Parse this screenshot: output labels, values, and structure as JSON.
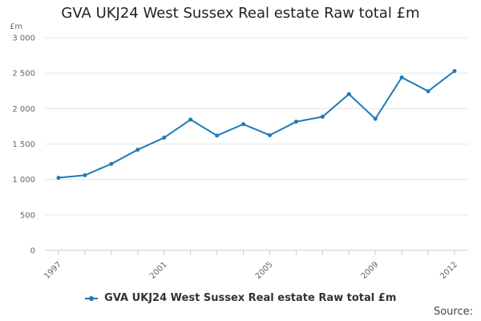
{
  "colors": {
    "series": "#1f7ab5",
    "grid": "#e6e6e6",
    "axis": "#cccccc"
  },
  "footer": {
    "source": "Source:"
  },
  "chart_data": {
    "type": "line",
    "title": "GVA UKJ24 West Sussex Real estate Raw total £m",
    "y_unit": "£m",
    "xlabel": "",
    "ylabel": "",
    "ylim": [
      0,
      3000
    ],
    "yticks": [
      0,
      500,
      1000,
      1500,
      2000,
      2500,
      3000
    ],
    "ytick_labels": [
      "0",
      "500",
      "1 000",
      "1 500",
      "2 000",
      "2 500",
      "3 000"
    ],
    "xticks": [
      1997,
      2001,
      2005,
      2009,
      2012
    ],
    "xtick_labels": [
      "1997",
      "2001",
      "2005",
      "2009",
      "2012"
    ],
    "grid": true,
    "legend": "bottom",
    "x": [
      1997,
      1998,
      1999,
      2000,
      2001,
      2002,
      2003,
      2004,
      2005,
      2006,
      2007,
      2008,
      2009,
      2010,
      2011,
      2012
    ],
    "series": [
      {
        "name": "GVA UKJ24 West Sussex Real estate Raw total £m",
        "values": [
          1025,
          1060,
          1220,
          1420,
          1590,
          1845,
          1620,
          1780,
          1625,
          1815,
          1885,
          2205,
          1855,
          2440,
          2245,
          2530
        ]
      }
    ]
  }
}
